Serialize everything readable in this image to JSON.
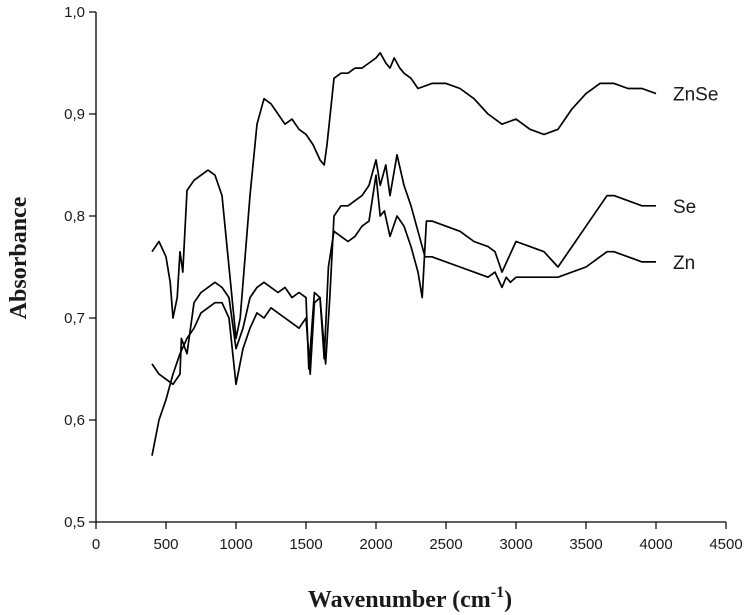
{
  "chart_data": {
    "type": "line",
    "xlabel": "Wavenumber  (cm",
    "xlabel_sup": "-1",
    "xlabel_end": ")",
    "ylabel": "Absorbance",
    "xlim": [
      0,
      4500
    ],
    "ylim": [
      0.5,
      1.0
    ],
    "x_ticks": [
      0,
      500,
      1000,
      1500,
      2000,
      2500,
      3000,
      3500,
      4000,
      4500
    ],
    "x_tick_labels": [
      "0",
      "500",
      "1000",
      "1500",
      "2000",
      "2500",
      "3000",
      "3500",
      "4000",
      "4500"
    ],
    "y_ticks": [
      0.5,
      0.6,
      0.7,
      0.8,
      0.9,
      1.0
    ],
    "y_tick_labels": [
      "0,5",
      "0,6",
      "0,7",
      "0,8",
      "0,9",
      "1,0"
    ],
    "grid": false,
    "series": [
      {
        "name": "ZnSe",
        "x": [
          400,
          450,
          500,
          530,
          550,
          580,
          600,
          620,
          650,
          700,
          750,
          800,
          850,
          900,
          950,
          1000,
          1030,
          1100,
          1150,
          1200,
          1250,
          1300,
          1350,
          1400,
          1450,
          1500,
          1550,
          1600,
          1630,
          1650,
          1700,
          1750,
          1800,
          1850,
          1900,
          1950,
          2000,
          2030,
          2070,
          2100,
          2130,
          2170,
          2200,
          2250,
          2300,
          2400,
          2500,
          2600,
          2700,
          2800,
          2900,
          3000,
          3100,
          3200,
          3300,
          3400,
          3500,
          3600,
          3700,
          3800,
          3900,
          4000
        ],
        "y": [
          0.765,
          0.775,
          0.76,
          0.735,
          0.7,
          0.72,
          0.765,
          0.745,
          0.825,
          0.835,
          0.84,
          0.845,
          0.84,
          0.82,
          0.75,
          0.68,
          0.7,
          0.82,
          0.89,
          0.915,
          0.91,
          0.9,
          0.89,
          0.895,
          0.885,
          0.88,
          0.87,
          0.855,
          0.85,
          0.87,
          0.935,
          0.94,
          0.94,
          0.945,
          0.945,
          0.95,
          0.955,
          0.96,
          0.95,
          0.945,
          0.955,
          0.945,
          0.94,
          0.935,
          0.925,
          0.93,
          0.93,
          0.925,
          0.915,
          0.9,
          0.89,
          0.895,
          0.885,
          0.88,
          0.885,
          0.905,
          0.92,
          0.93,
          0.93,
          0.925,
          0.925,
          0.92
        ]
      },
      {
        "name": "Se",
        "x": [
          400,
          450,
          500,
          550,
          600,
          650,
          700,
          750,
          800,
          850,
          900,
          950,
          1000,
          1050,
          1100,
          1150,
          1200,
          1250,
          1300,
          1350,
          1400,
          1450,
          1500,
          1530,
          1560,
          1600,
          1630,
          1660,
          1700,
          1750,
          1800,
          1850,
          1900,
          1950,
          2000,
          2030,
          2060,
          2100,
          2150,
          2200,
          2250,
          2300,
          2330,
          2360,
          2400,
          2500,
          2600,
          2700,
          2800,
          2850,
          2900,
          2950,
          3000,
          3100,
          3200,
          3300,
          3400,
          3500,
          3600,
          3650,
          3700,
          3800,
          3900,
          4000
        ],
        "y": [
          0.565,
          0.6,
          0.62,
          0.645,
          0.665,
          0.68,
          0.69,
          0.705,
          0.71,
          0.715,
          0.715,
          0.7,
          0.635,
          0.67,
          0.69,
          0.705,
          0.7,
          0.71,
          0.705,
          0.7,
          0.695,
          0.69,
          0.7,
          0.645,
          0.715,
          0.72,
          0.66,
          0.75,
          0.785,
          0.78,
          0.775,
          0.78,
          0.79,
          0.795,
          0.84,
          0.8,
          0.805,
          0.78,
          0.8,
          0.79,
          0.77,
          0.745,
          0.72,
          0.795,
          0.795,
          0.79,
          0.785,
          0.775,
          0.77,
          0.765,
          0.745,
          0.76,
          0.775,
          0.77,
          0.765,
          0.75,
          0.77,
          0.79,
          0.81,
          0.82,
          0.82,
          0.815,
          0.81,
          0.81
        ]
      },
      {
        "name": "Zn",
        "x": [
          400,
          450,
          500,
          550,
          600,
          610,
          650,
          700,
          750,
          800,
          850,
          900,
          950,
          1000,
          1050,
          1100,
          1150,
          1200,
          1250,
          1300,
          1350,
          1400,
          1450,
          1500,
          1520,
          1560,
          1600,
          1640,
          1670,
          1700,
          1750,
          1800,
          1850,
          1900,
          1950,
          2000,
          2030,
          2070,
          2100,
          2150,
          2200,
          2250,
          2300,
          2350,
          2400,
          2500,
          2600,
          2700,
          2800,
          2850,
          2900,
          2930,
          2960,
          3000,
          3100,
          3200,
          3300,
          3400,
          3500,
          3600,
          3650,
          3700,
          3800,
          3900,
          4000
        ],
        "y": [
          0.655,
          0.645,
          0.64,
          0.635,
          0.645,
          0.68,
          0.665,
          0.715,
          0.725,
          0.73,
          0.735,
          0.73,
          0.72,
          0.67,
          0.69,
          0.72,
          0.73,
          0.735,
          0.73,
          0.725,
          0.73,
          0.72,
          0.725,
          0.72,
          0.65,
          0.725,
          0.72,
          0.655,
          0.72,
          0.8,
          0.81,
          0.81,
          0.815,
          0.82,
          0.83,
          0.855,
          0.83,
          0.85,
          0.82,
          0.86,
          0.83,
          0.81,
          0.785,
          0.76,
          0.76,
          0.755,
          0.75,
          0.745,
          0.74,
          0.745,
          0.73,
          0.74,
          0.735,
          0.74,
          0.74,
          0.74,
          0.74,
          0.745,
          0.75,
          0.76,
          0.765,
          0.765,
          0.76,
          0.755,
          0.755
        ]
      }
    ]
  }
}
